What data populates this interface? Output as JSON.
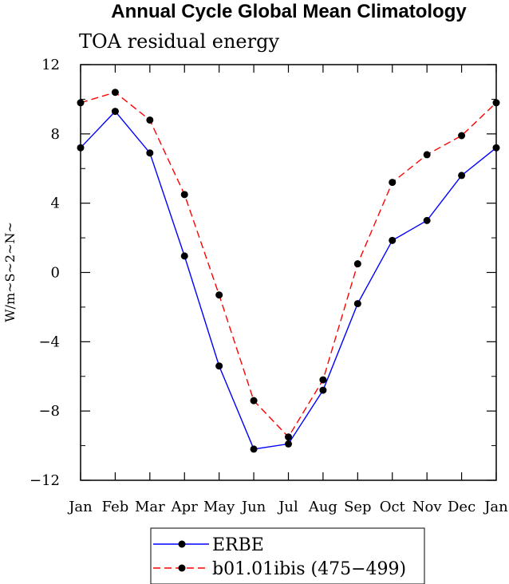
{
  "chart_data": {
    "type": "line",
    "title": "Annual Cycle Global Mean Climatology",
    "subtitle": "TOA residual energy",
    "xlabel": "",
    "ylabel": "W/m~S~2~N~",
    "categories": [
      "Jan",
      "Feb",
      "Mar",
      "Apr",
      "May",
      "Jun",
      "Jul",
      "Aug",
      "Sep",
      "Oct",
      "Nov",
      "Dec",
      "Jan"
    ],
    "ylim": [
      -12,
      12
    ],
    "yticks": [
      -12,
      -8,
      -4,
      0,
      4,
      8,
      12
    ],
    "ytick_labels": [
      "−12",
      "−8",
      "−4",
      "0",
      "4",
      "8",
      "12"
    ],
    "grid": false,
    "legend_position": "bottom-center",
    "series": [
      {
        "name": "ERBE",
        "color": "#0000ff",
        "dash": "solid",
        "values": [
          7.2,
          9.3,
          6.9,
          0.95,
          -5.4,
          -10.2,
          -9.9,
          -6.8,
          -1.8,
          1.85,
          3.0,
          5.6,
          7.2
        ]
      },
      {
        "name": "b01.01ibis (475−499)",
        "color": "#ff0000",
        "dash": "dashed",
        "values": [
          9.8,
          10.4,
          8.8,
          4.5,
          -1.3,
          -7.4,
          -9.5,
          -6.2,
          0.5,
          5.2,
          6.8,
          7.9,
          9.8
        ]
      }
    ]
  }
}
